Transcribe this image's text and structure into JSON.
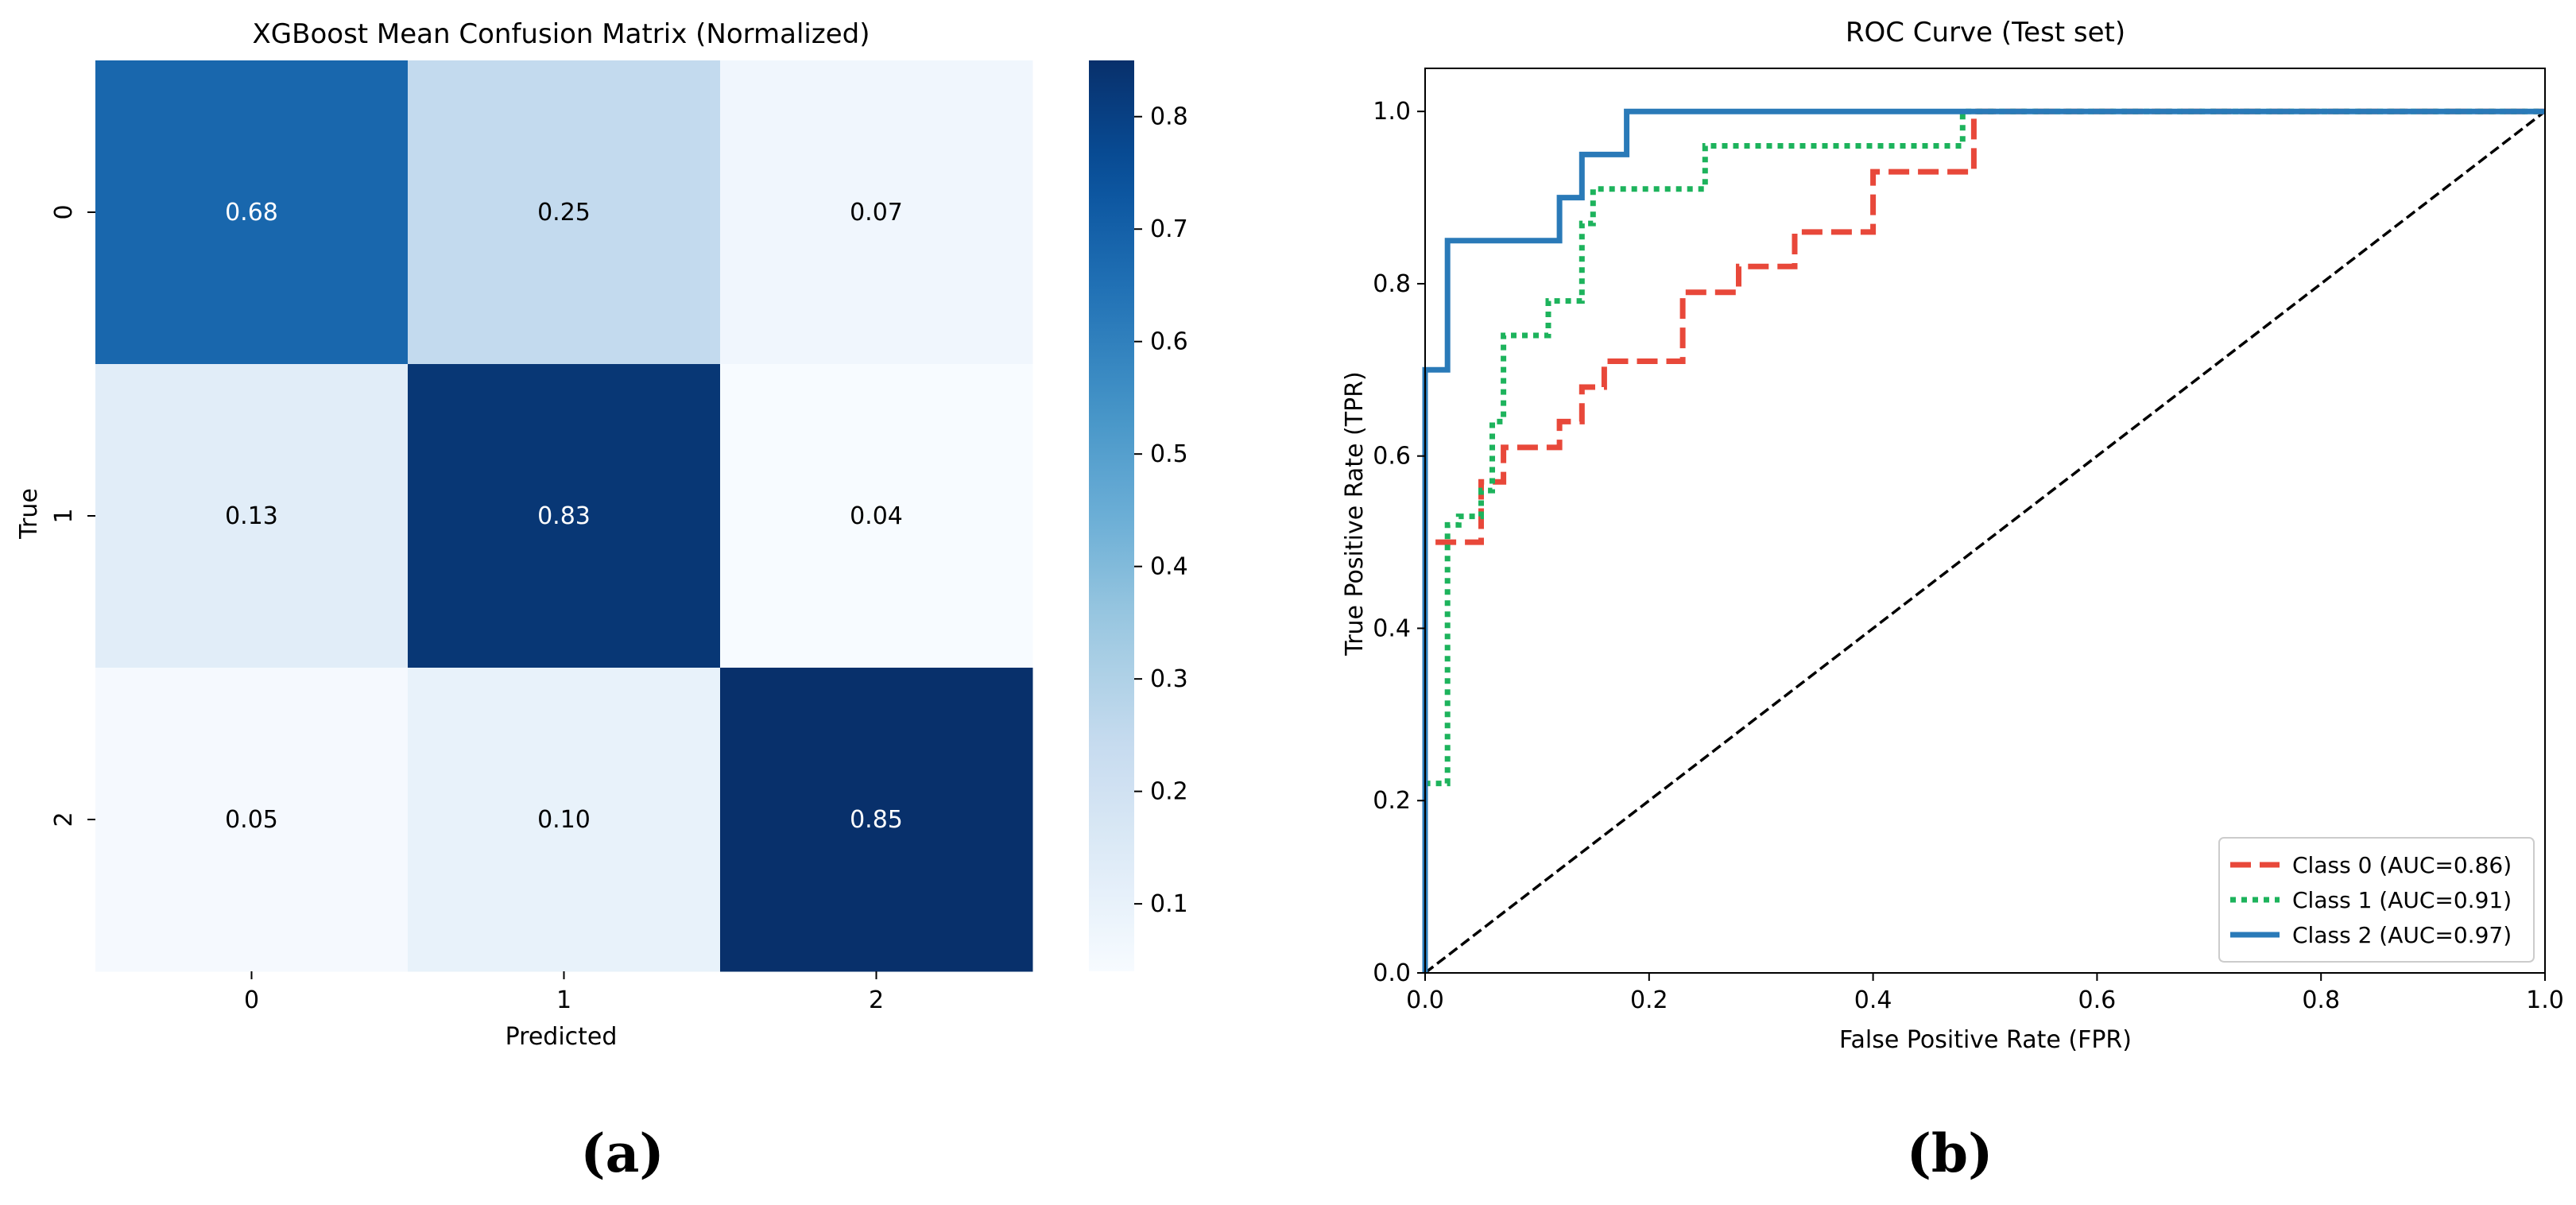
{
  "chart_data": [
    {
      "type": "heatmap",
      "title": "XGBoost Mean Confusion Matrix (Normalized)",
      "xlabel": "Predicted",
      "ylabel": "True",
      "row_labels": [
        "0",
        "1",
        "2"
      ],
      "col_labels": [
        "0",
        "1",
        "2"
      ],
      "values": [
        [
          0.68,
          0.25,
          0.07
        ],
        [
          0.13,
          0.83,
          0.04
        ],
        [
          0.05,
          0.1,
          0.85
        ]
      ],
      "value_labels": [
        [
          "0.68",
          "0.25",
          "0.07"
        ],
        [
          "0.13",
          "0.83",
          "0.04"
        ],
        [
          "0.05",
          "0.10",
          "0.85"
        ]
      ],
      "colormap": "Blues",
      "vmin": 0.04,
      "vmax": 0.85,
      "colorbar_ticks": [
        0.1,
        0.2,
        0.3,
        0.4,
        0.5,
        0.6,
        0.7,
        0.8
      ],
      "colorbar_tick_labels": [
        "0.1",
        "0.2",
        "0.3",
        "0.4",
        "0.5",
        "0.6",
        "0.7",
        "0.8"
      ],
      "panel_label": "(a)"
    },
    {
      "type": "line",
      "title": "ROC Curve (Test set)",
      "xlabel": "False Positive Rate (FPR)",
      "ylabel": "True Positive Rate (TPR)",
      "xlim": [
        0.0,
        1.0
      ],
      "ylim": [
        0.0,
        1.05
      ],
      "xticks": [
        0.0,
        0.2,
        0.4,
        0.6,
        0.8,
        1.0
      ],
      "xtick_labels": [
        "0.0",
        "0.2",
        "0.4",
        "0.6",
        "0.8",
        "1.0"
      ],
      "yticks": [
        0.0,
        0.2,
        0.4,
        0.6,
        0.8,
        1.0
      ],
      "ytick_labels": [
        "0.0",
        "0.2",
        "0.4",
        "0.6",
        "0.8",
        "1.0"
      ],
      "legend_position": "lower-right",
      "series": [
        {
          "name": "Class 0 (AUC=0.86)",
          "color": "#e8483a",
          "style": "dashed",
          "x": [
            0,
            0,
            0.05,
            0.05,
            0.07,
            0.07,
            0.12,
            0.12,
            0.14,
            0.14,
            0.16,
            0.16,
            0.23,
            0.23,
            0.28,
            0.28,
            0.33,
            0.33,
            0.4,
            0.4,
            0.49,
            0.49,
            1.0
          ],
          "y": [
            0,
            0.5,
            0.5,
            0.57,
            0.57,
            0.61,
            0.61,
            0.64,
            0.64,
            0.68,
            0.68,
            0.71,
            0.71,
            0.79,
            0.79,
            0.82,
            0.82,
            0.86,
            0.86,
            0.93,
            0.93,
            1.0,
            1.0
          ]
        },
        {
          "name": "Class 1 (AUC=0.91)",
          "color": "#1db35c",
          "style": "dotted",
          "x": [
            0,
            0,
            0.02,
            0.02,
            0.03,
            0.03,
            0.05,
            0.05,
            0.06,
            0.06,
            0.07,
            0.07,
            0.11,
            0.11,
            0.14,
            0.14,
            0.15,
            0.15,
            0.25,
            0.25,
            0.48,
            0.48,
            1.0
          ],
          "y": [
            0,
            0.22,
            0.22,
            0.52,
            0.52,
            0.53,
            0.53,
            0.56,
            0.56,
            0.64,
            0.64,
            0.74,
            0.74,
            0.78,
            0.78,
            0.87,
            0.87,
            0.91,
            0.91,
            0.96,
            0.96,
            1.0,
            1.0
          ]
        },
        {
          "name": "Class 2 (AUC=0.97)",
          "color": "#2a7ab8",
          "style": "solid",
          "x": [
            0,
            0,
            0.02,
            0.02,
            0.12,
            0.12,
            0.14,
            0.14,
            0.18,
            0.18,
            1.0
          ],
          "y": [
            0,
            0.7,
            0.7,
            0.85,
            0.85,
            0.9,
            0.9,
            0.95,
            0.95,
            1.0,
            1.0
          ]
        }
      ],
      "reference_line": {
        "x": [
          0,
          1
        ],
        "y": [
          0,
          1
        ],
        "color": "#000000",
        "style": "dashed"
      },
      "panel_label": "(b)"
    }
  ]
}
